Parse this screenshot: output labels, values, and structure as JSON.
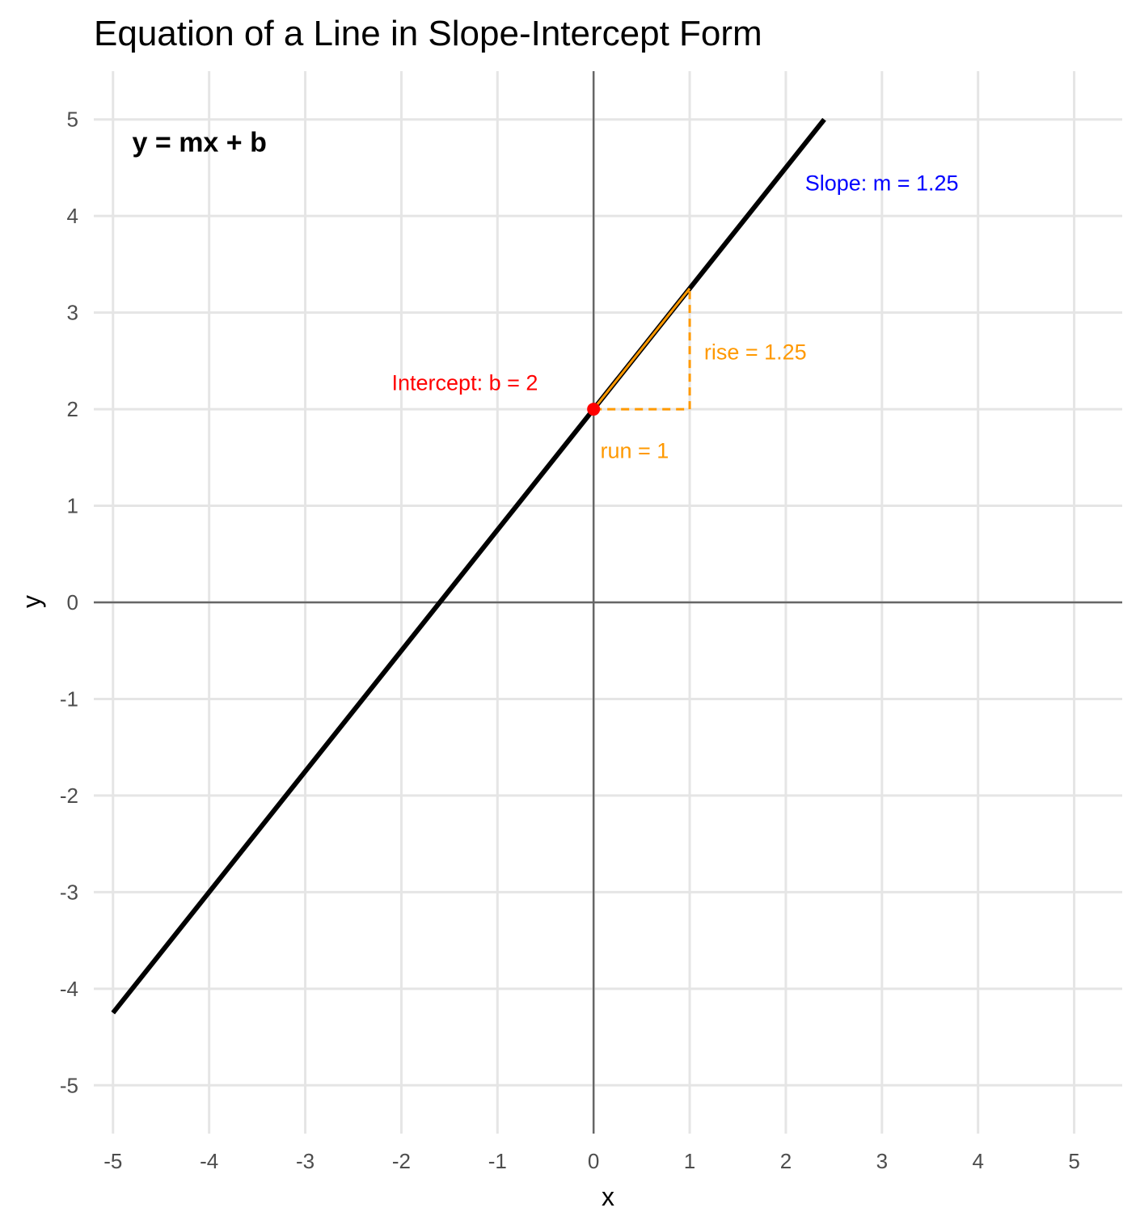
{
  "chart_data": {
    "type": "line",
    "title": "Equation of a Line in Slope-Intercept Form",
    "xlabel": "x",
    "ylabel": "y",
    "xlim": [
      -5.2,
      5.5
    ],
    "ylim": [
      -5.5,
      5.5
    ],
    "xticks": [
      -5,
      -4,
      -3,
      -2,
      -1,
      0,
      1,
      2,
      3,
      4,
      5
    ],
    "yticks": [
      -5,
      -4,
      -3,
      -2,
      -1,
      0,
      1,
      2,
      3,
      4,
      5
    ],
    "grid": true,
    "slope": 1.25,
    "intercept": 2,
    "series": [
      {
        "x": [
          -5,
          2.4
        ],
        "y": [
          -4.25,
          5
        ]
      }
    ],
    "run_segment": {
      "x": [
        0,
        1
      ],
      "y": [
        2,
        2
      ]
    },
    "rise_segment": {
      "x": [
        1,
        1
      ],
      "y": [
        2,
        3.25
      ]
    },
    "slope_segment": {
      "x": [
        0,
        1
      ],
      "y": [
        2,
        3.25
      ]
    },
    "intercept_point": {
      "x": 0,
      "y": 2
    },
    "colors": {
      "line": "#000000",
      "intercept": "#ff0000",
      "slope": "#0000ff",
      "rise_run": "#ff9900",
      "grid": "#e5e5e5",
      "axes": "#666666"
    },
    "annotations": {
      "equation": {
        "text": "y = mx + b",
        "x": -4.8,
        "y": 4.75
      },
      "slope": {
        "text": "Slope: m = 1.25",
        "x": 2.2,
        "y": 4.35
      },
      "intercept": {
        "text": "Intercept: b = 2",
        "x": -2.1,
        "y": 2.28
      },
      "rise": {
        "text": "rise = 1.25",
        "x": 1.15,
        "y": 2.6
      },
      "run": {
        "text": "run = 1",
        "x": 0.07,
        "y": 1.58
      }
    }
  }
}
